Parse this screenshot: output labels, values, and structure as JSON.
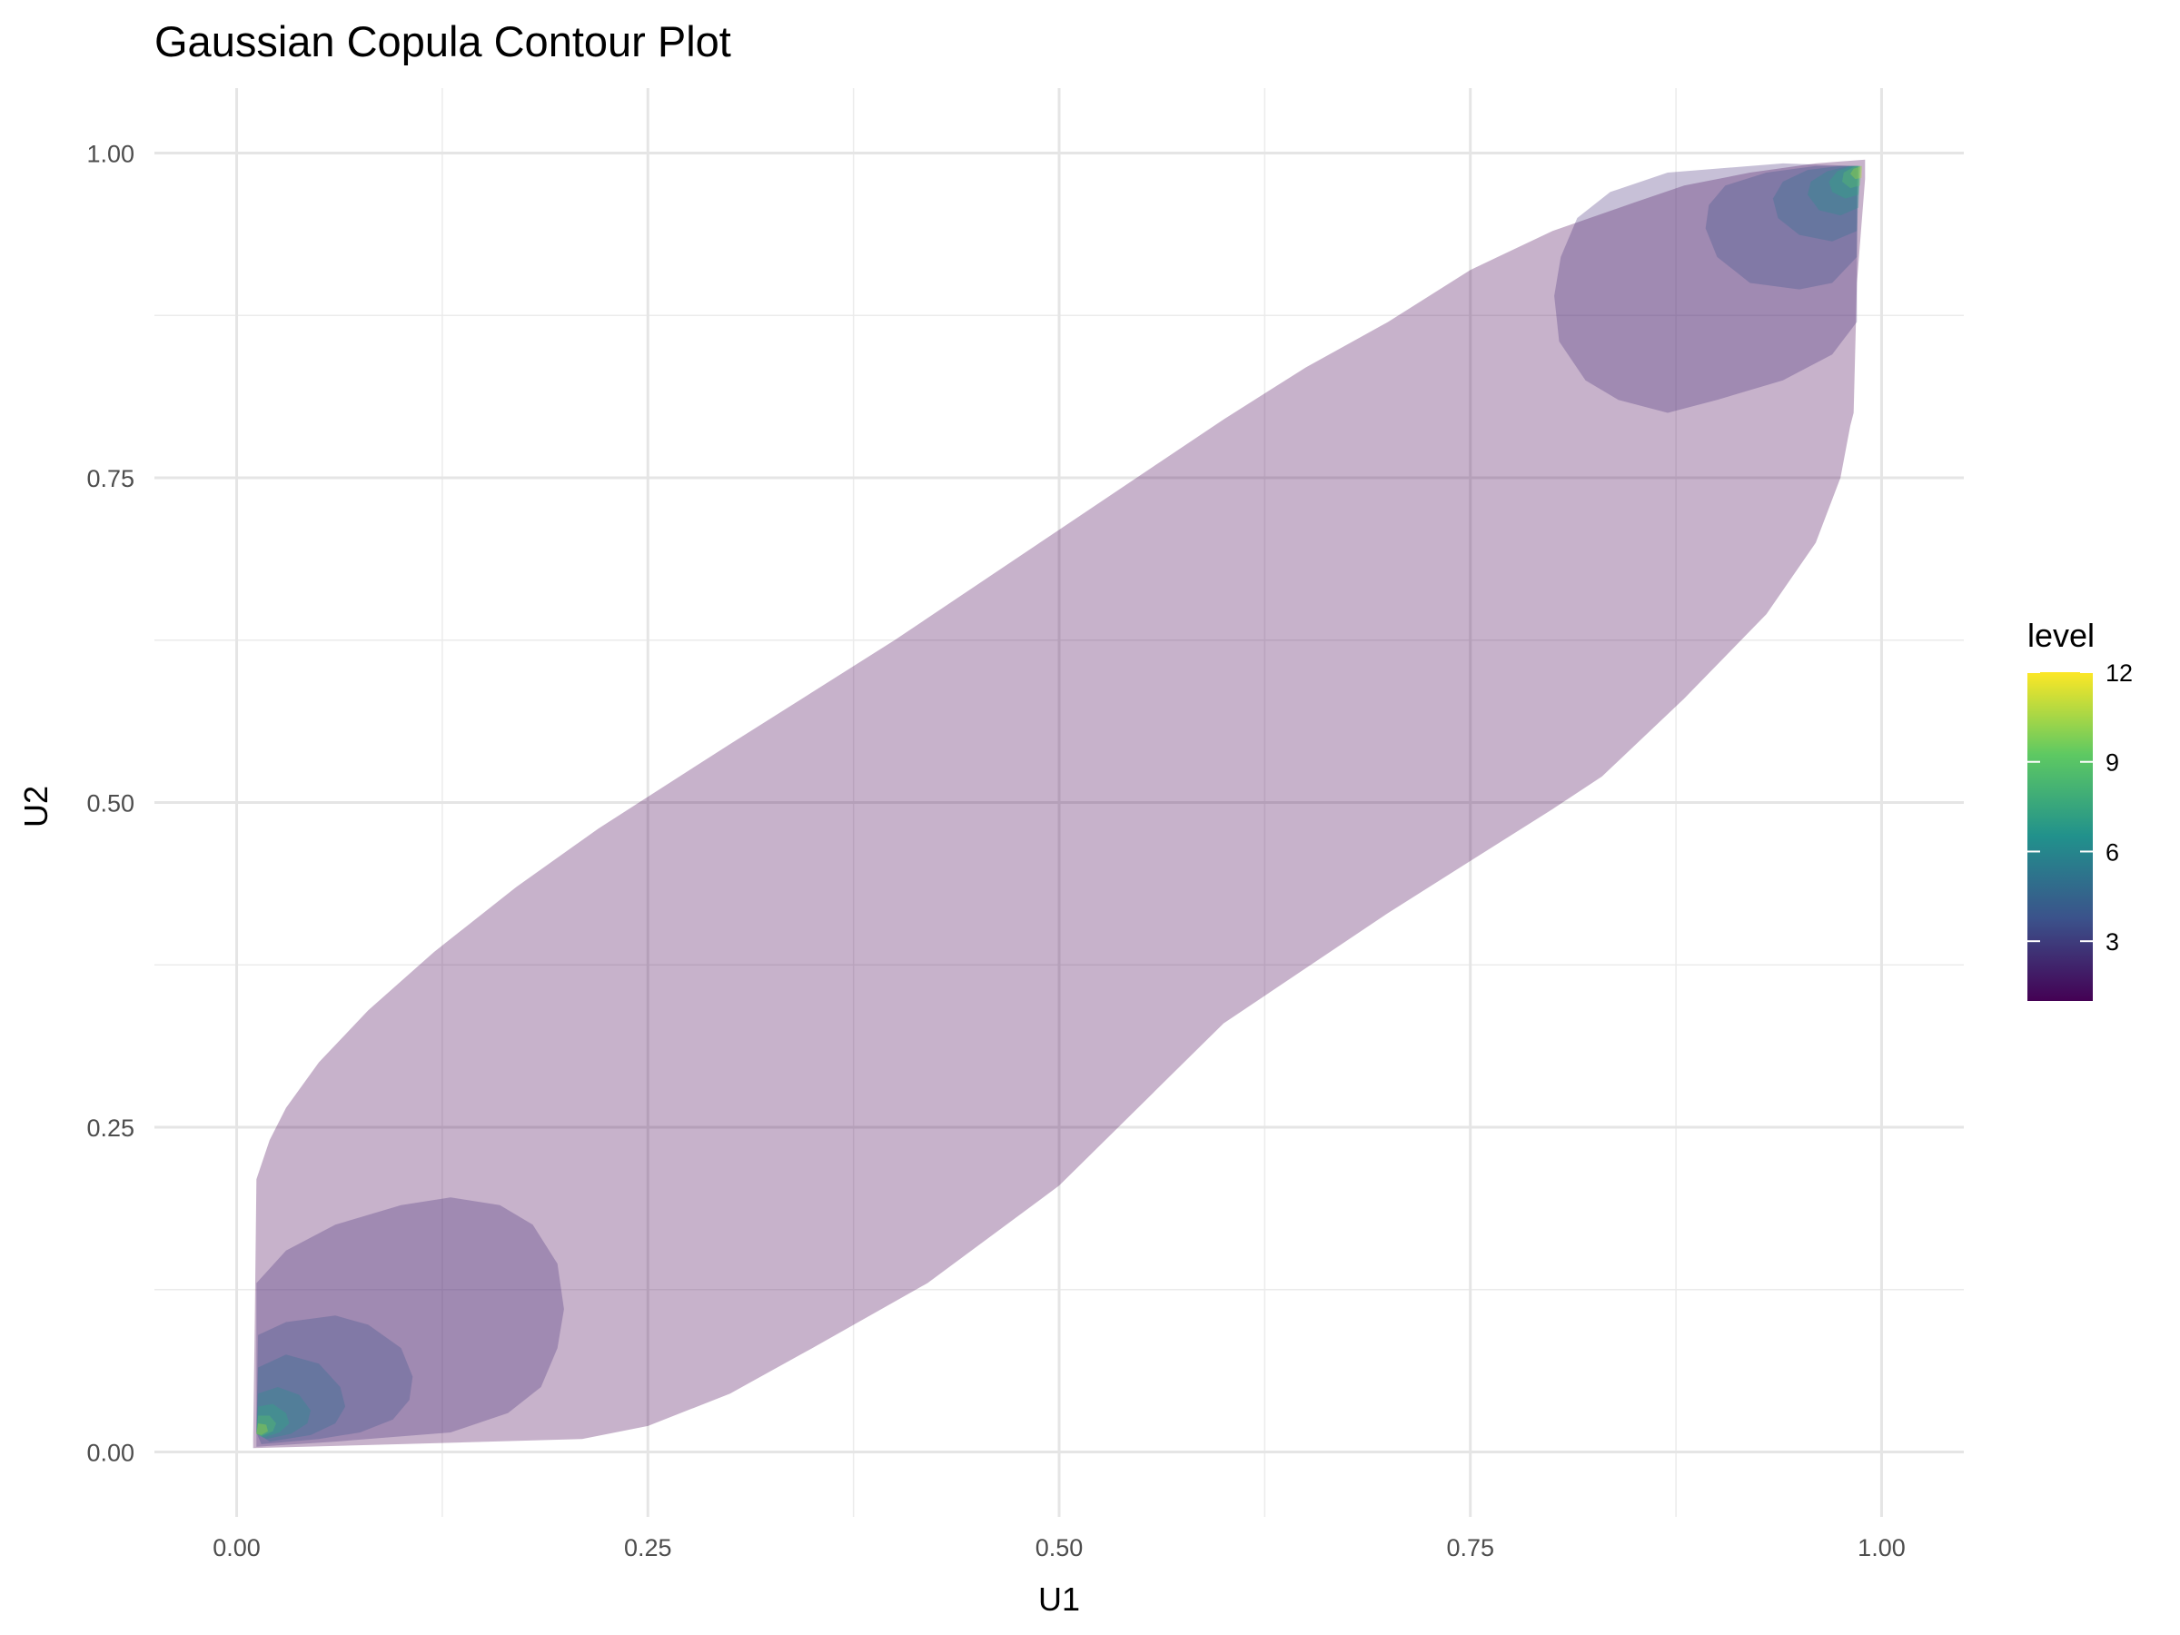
{
  "chart_data": {
    "type": "contour",
    "title": "Gaussian Copula Contour Plot",
    "xlabel": "U1",
    "ylabel": "U2",
    "xlim": [
      -0.05,
      1.05
    ],
    "ylim": [
      -0.05,
      1.05
    ],
    "x_ticks": [
      0,
      0.25,
      0.5,
      0.75,
      1
    ],
    "x_tick_labels": [
      "0.00",
      "0.25",
      "0.50",
      "0.75",
      "1.00"
    ],
    "y_ticks": [
      0,
      0.25,
      0.5,
      0.75,
      1
    ],
    "y_tick_labels": [
      "0.00",
      "0.25",
      "0.50",
      "0.75",
      "1.00"
    ],
    "grid": true,
    "legend": {
      "title": "level",
      "position": "right",
      "range": [
        1,
        12
      ],
      "breaks": [
        3,
        6,
        9,
        12
      ],
      "break_labels": [
        "3",
        "6",
        "9",
        "12"
      ],
      "colors": [
        "#440154",
        "#3b528b",
        "#21918c",
        "#5ec962",
        "#fde725"
      ]
    },
    "fill_opacity": 0.3,
    "levels": [
      {
        "level": 1.5,
        "color": "#440154",
        "polygons": [
          [
            [
              0.01,
              0.01
            ],
            [
              0.011,
              0.1
            ],
            [
              0.012,
              0.21
            ],
            [
              0.02,
              0.24
            ],
            [
              0.03,
              0.265
            ],
            [
              0.05,
              0.3
            ],
            [
              0.08,
              0.34
            ],
            [
              0.12,
              0.385
            ],
            [
              0.17,
              0.435
            ],
            [
              0.22,
              0.48
            ],
            [
              0.3,
              0.545
            ],
            [
              0.4,
              0.625
            ],
            [
              0.5,
              0.71
            ],
            [
              0.6,
              0.795
            ],
            [
              0.65,
              0.835
            ],
            [
              0.7,
              0.87
            ],
            [
              0.75,
              0.91
            ],
            [
              0.8,
              0.94
            ],
            [
              0.85,
              0.962
            ],
            [
              0.88,
              0.975
            ],
            [
              0.92,
              0.985
            ],
            [
              0.96,
              0.992
            ],
            [
              0.99,
              0.995
            ],
            [
              0.99,
              0.98
            ],
            [
              0.985,
              0.9
            ],
            [
              0.983,
              0.8
            ],
            [
              0.981,
              0.79
            ],
            [
              0.975,
              0.75
            ],
            [
              0.96,
              0.7
            ],
            [
              0.93,
              0.645
            ],
            [
              0.88,
              0.58
            ],
            [
              0.83,
              0.52
            ],
            [
              0.8,
              0.495
            ],
            [
              0.75,
              0.455
            ],
            [
              0.7,
              0.415
            ],
            [
              0.6,
              0.33
            ],
            [
              0.5,
              0.205
            ],
            [
              0.42,
              0.13
            ],
            [
              0.35,
              0.08
            ],
            [
              0.3,
              0.045
            ],
            [
              0.25,
              0.02
            ],
            [
              0.21,
              0.01
            ],
            [
              0.1,
              0.006
            ],
            [
              0.01,
              0.003
            ]
          ]
        ]
      },
      {
        "level": 3.0,
        "color": "#472d7b",
        "polygons": [
          [
            [
              0.012,
              0.015
            ],
            [
              0.012,
              0.13
            ],
            [
              0.03,
              0.155
            ],
            [
              0.06,
              0.175
            ],
            [
              0.1,
              0.19
            ],
            [
              0.13,
              0.196
            ],
            [
              0.16,
              0.19
            ],
            [
              0.18,
              0.175
            ],
            [
              0.195,
              0.145
            ],
            [
              0.199,
              0.11
            ],
            [
              0.195,
              0.08
            ],
            [
              0.185,
              0.05
            ],
            [
              0.165,
              0.03
            ],
            [
              0.13,
              0.015
            ],
            [
              0.06,
              0.008
            ],
            [
              0.012,
              0.004
            ]
          ],
          [
            [
              0.985,
              0.99
            ],
            [
              0.985,
              0.87
            ],
            [
              0.97,
              0.845
            ],
            [
              0.94,
              0.825
            ],
            [
              0.9,
              0.81
            ],
            [
              0.87,
              0.8
            ],
            [
              0.84,
              0.81
            ],
            [
              0.82,
              0.825
            ],
            [
              0.804,
              0.855
            ],
            [
              0.801,
              0.89
            ],
            [
              0.805,
              0.92
            ],
            [
              0.815,
              0.95
            ],
            [
              0.835,
              0.97
            ],
            [
              0.87,
              0.985
            ],
            [
              0.94,
              0.992
            ]
          ]
        ]
      },
      {
        "level": 4.5,
        "color": "#3b528b",
        "polygons": [
          [
            [
              0.012,
              0.015
            ],
            [
              0.013,
              0.09
            ],
            [
              0.03,
              0.1
            ],
            [
              0.06,
              0.105
            ],
            [
              0.08,
              0.098
            ],
            [
              0.1,
              0.08
            ],
            [
              0.107,
              0.058
            ],
            [
              0.105,
              0.04
            ],
            [
              0.095,
              0.025
            ],
            [
              0.075,
              0.015
            ],
            [
              0.05,
              0.01
            ],
            [
              0.015,
              0.006
            ]
          ],
          [
            [
              0.986,
              0.99
            ],
            [
              0.985,
              0.92
            ],
            [
              0.97,
              0.9
            ],
            [
              0.95,
              0.895
            ],
            [
              0.92,
              0.9
            ],
            [
              0.9,
              0.92
            ],
            [
              0.893,
              0.942
            ],
            [
              0.895,
              0.96
            ],
            [
              0.905,
              0.975
            ],
            [
              0.93,
              0.985
            ],
            [
              0.96,
              0.99
            ]
          ]
        ]
      },
      {
        "level": 6.0,
        "color": "#2c728e",
        "polygons": [
          [
            [
              0.012,
              0.015
            ],
            [
              0.013,
              0.065
            ],
            [
              0.03,
              0.075
            ],
            [
              0.05,
              0.068
            ],
            [
              0.063,
              0.05
            ],
            [
              0.066,
              0.035
            ],
            [
              0.06,
              0.022
            ],
            [
              0.045,
              0.013
            ],
            [
              0.02,
              0.008
            ]
          ],
          [
            [
              0.986,
              0.99
            ],
            [
              0.985,
              0.94
            ],
            [
              0.97,
              0.932
            ],
            [
              0.95,
              0.937
            ],
            [
              0.937,
              0.95
            ],
            [
              0.934,
              0.965
            ],
            [
              0.94,
              0.978
            ],
            [
              0.955,
              0.987
            ],
            [
              0.975,
              0.99
            ]
          ]
        ]
      },
      {
        "level": 7.5,
        "color": "#21918c",
        "polygons": [
          [
            [
              0.012,
              0.014
            ],
            [
              0.013,
              0.045
            ],
            [
              0.025,
              0.05
            ],
            [
              0.038,
              0.044
            ],
            [
              0.045,
              0.032
            ],
            [
              0.043,
              0.022
            ],
            [
              0.033,
              0.014
            ],
            [
              0.018,
              0.01
            ]
          ],
          [
            [
              0.987,
              0.99
            ],
            [
              0.986,
              0.958
            ],
            [
              0.975,
              0.952
            ],
            [
              0.962,
              0.956
            ],
            [
              0.955,
              0.968
            ],
            [
              0.957,
              0.978
            ],
            [
              0.967,
              0.986
            ],
            [
              0.98,
              0.99
            ]
          ]
        ]
      },
      {
        "level": 9.0,
        "color": "#28ae80",
        "polygons": [
          [
            [
              0.012,
              0.014
            ],
            [
              0.013,
              0.035
            ],
            [
              0.022,
              0.037
            ],
            [
              0.03,
              0.03
            ],
            [
              0.032,
              0.022
            ],
            [
              0.026,
              0.015
            ],
            [
              0.016,
              0.011
            ]
          ],
          [
            [
              0.987,
              0.99
            ],
            [
              0.986,
              0.968
            ],
            [
              0.978,
              0.965
            ],
            [
              0.97,
              0.97
            ],
            [
              0.968,
              0.978
            ],
            [
              0.973,
              0.986
            ],
            [
              0.982,
              0.99
            ]
          ]
        ]
      },
      {
        "level": 10.5,
        "color": "#5ec962",
        "polygons": [
          [
            [
              0.012,
              0.014
            ],
            [
              0.013,
              0.028
            ],
            [
              0.02,
              0.028
            ],
            [
              0.024,
              0.022
            ],
            [
              0.022,
              0.016
            ],
            [
              0.015,
              0.012
            ]
          ],
          [
            [
              0.988,
              0.99
            ],
            [
              0.987,
              0.975
            ],
            [
              0.981,
              0.973
            ],
            [
              0.976,
              0.978
            ],
            [
              0.977,
              0.985
            ],
            [
              0.984,
              0.99
            ]
          ]
        ]
      },
      {
        "level": 12.0,
        "color": "#b5de2b",
        "polygons": [
          [
            [
              0.012,
              0.014
            ],
            [
              0.013,
              0.022
            ],
            [
              0.018,
              0.021
            ],
            [
              0.019,
              0.016
            ],
            [
              0.015,
              0.013
            ]
          ],
          [
            [
              0.988,
              0.99
            ],
            [
              0.988,
              0.981
            ],
            [
              0.984,
              0.98
            ],
            [
              0.981,
              0.984
            ],
            [
              0.983,
              0.988
            ]
          ]
        ]
      }
    ]
  }
}
